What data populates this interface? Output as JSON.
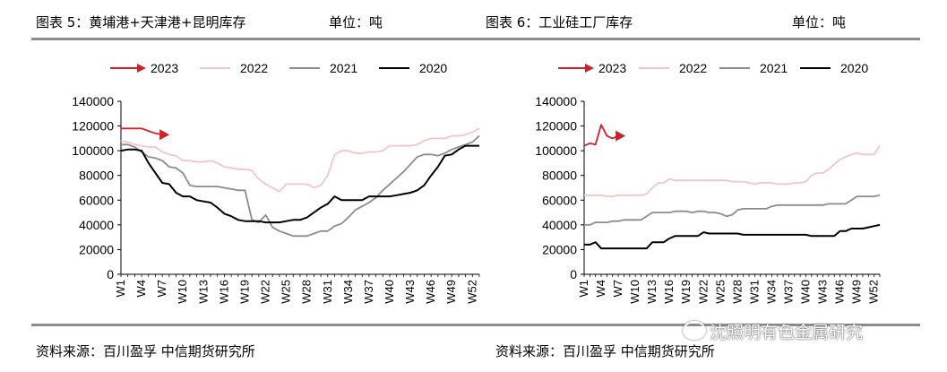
{
  "header": {
    "left_title": "图表 5：黄埔港+天津港+昆明库存",
    "left_unit": "单位：吨",
    "right_title": "图表 6：工业硅工厂库存",
    "right_unit": "单位：吨"
  },
  "source": {
    "left": "资料来源：百川盈孚 中信期货研究所",
    "right": "资料来源：百川盈孚 中信期货研究所"
  },
  "watermark": "沈照明有色金属研究",
  "colors": {
    "2023": "#d0202a",
    "2022": "#f2c6c6",
    "2021": "#8c8c8c",
    "2020": "#000000"
  },
  "chart_data": [
    {
      "type": "line",
      "title": "",
      "legend": [
        "2023",
        "2022",
        "2021",
        "2020"
      ],
      "legend_position": "top",
      "x_ticks": [
        "W1",
        "W4",
        "W7",
        "W10",
        "W13",
        "W16",
        "W19",
        "W22",
        "W25",
        "W28",
        "W31",
        "W34",
        "W37",
        "W40",
        "W43",
        "W46",
        "W49",
        "W52"
      ],
      "ylim": [
        0,
        140000
      ],
      "y_ticks": [
        0,
        20000,
        40000,
        60000,
        80000,
        100000,
        120000,
        140000
      ],
      "series": [
        {
          "name": "2023",
          "x": [
            1,
            2,
            3,
            4,
            5,
            6,
            7
          ],
          "values": [
            118000,
            118000,
            118000,
            118000,
            116000,
            114000,
            113000
          ]
        },
        {
          "name": "2022",
          "x": [
            1,
            2,
            3,
            4,
            5,
            6,
            7,
            8,
            9,
            10,
            11,
            12,
            13,
            14,
            15,
            16,
            17,
            18,
            19,
            20,
            21,
            22,
            23,
            24,
            25,
            26,
            27,
            28,
            29,
            30,
            31,
            32,
            33,
            34,
            35,
            36,
            37,
            38,
            39,
            40,
            41,
            42,
            43,
            44,
            45,
            46,
            47,
            48,
            49,
            50,
            51,
            52,
            53
          ],
          "values": [
            108000,
            107000,
            105000,
            104000,
            103000,
            103000,
            99000,
            97000,
            96000,
            92000,
            92000,
            91000,
            91000,
            92000,
            90000,
            87000,
            86000,
            85000,
            85000,
            84000,
            77000,
            73000,
            70000,
            67000,
            73000,
            73000,
            73000,
            73000,
            70000,
            72000,
            80000,
            97000,
            100000,
            100000,
            98000,
            98000,
            99000,
            99000,
            100000,
            104000,
            104000,
            104000,
            104000,
            105000,
            108000,
            110000,
            110000,
            110000,
            112000,
            112000,
            113000,
            115000,
            118000
          ]
        },
        {
          "name": "2021",
          "x": [
            1,
            2,
            3,
            4,
            5,
            6,
            7,
            8,
            9,
            10,
            11,
            12,
            13,
            14,
            15,
            16,
            17,
            18,
            19,
            20,
            21,
            22,
            23,
            24,
            25,
            26,
            27,
            28,
            29,
            30,
            31,
            32,
            33,
            34,
            35,
            36,
            37,
            38,
            39,
            40,
            41,
            42,
            43,
            44,
            45,
            46,
            47,
            48,
            49,
            50,
            51,
            52,
            53
          ],
          "values": [
            105000,
            105000,
            103000,
            99000,
            95000,
            94000,
            92000,
            87000,
            86000,
            82000,
            72000,
            71000,
            71000,
            71000,
            71000,
            70000,
            69000,
            68000,
            68000,
            44000,
            42000,
            48000,
            38000,
            35000,
            33000,
            31000,
            31000,
            31000,
            33000,
            35000,
            35000,
            39000,
            41000,
            46000,
            52000,
            55000,
            58000,
            62000,
            68000,
            73000,
            78000,
            83000,
            89000,
            95000,
            97000,
            97000,
            96000,
            98000,
            101000,
            103000,
            105000,
            107000,
            112000
          ]
        },
        {
          "name": "2020",
          "x": [
            1,
            2,
            3,
            4,
            5,
            6,
            7,
            8,
            9,
            10,
            11,
            12,
            13,
            14,
            15,
            16,
            17,
            18,
            19,
            20,
            21,
            22,
            23,
            24,
            25,
            26,
            27,
            28,
            29,
            30,
            31,
            32,
            33,
            34,
            35,
            36,
            37,
            38,
            39,
            40,
            41,
            42,
            43,
            44,
            45,
            46,
            47,
            48,
            49,
            50,
            51,
            52,
            53
          ],
          "values": [
            100000,
            101000,
            101000,
            100000,
            90000,
            82000,
            74000,
            73000,
            66000,
            63000,
            63000,
            60000,
            59000,
            58000,
            54000,
            49000,
            47000,
            44000,
            43000,
            43000,
            43000,
            42000,
            42000,
            42000,
            43000,
            44000,
            44000,
            46000,
            50000,
            54000,
            57000,
            63000,
            60000,
            60000,
            60000,
            60000,
            63000,
            63000,
            63000,
            63000,
            64000,
            65000,
            66000,
            68000,
            72000,
            80000,
            87000,
            96000,
            97000,
            101000,
            104000,
            104000,
            104000
          ]
        }
      ]
    },
    {
      "type": "line",
      "title": "",
      "legend": [
        "2023",
        "2022",
        "2021",
        "2020"
      ],
      "legend_position": "top",
      "x_ticks": [
        "W1",
        "W4",
        "W7",
        "W10",
        "W13",
        "W16",
        "W19",
        "W22",
        "W25",
        "W28",
        "W31",
        "W34",
        "W37",
        "W40",
        "W43",
        "W46",
        "W49",
        "W52"
      ],
      "ylim": [
        0,
        140000
      ],
      "y_ticks": [
        0,
        20000,
        40000,
        60000,
        80000,
        100000,
        120000,
        140000
      ],
      "series": [
        {
          "name": "2023",
          "x": [
            1,
            2,
            3,
            4,
            5,
            6,
            7
          ],
          "values": [
            104000,
            106000,
            105000,
            121000,
            112000,
            110000,
            112000
          ]
        },
        {
          "name": "2022",
          "x": [
            1,
            2,
            3,
            4,
            5,
            6,
            7,
            8,
            9,
            10,
            11,
            12,
            13,
            14,
            15,
            16,
            17,
            18,
            19,
            20,
            21,
            22,
            23,
            24,
            25,
            26,
            27,
            28,
            29,
            30,
            31,
            32,
            33,
            34,
            35,
            36,
            37,
            38,
            39,
            40,
            41,
            42,
            43,
            44,
            45,
            46,
            47,
            48,
            49,
            50,
            51,
            52,
            53
          ],
          "values": [
            64000,
            64000,
            64000,
            64000,
            63000,
            63000,
            64000,
            64000,
            64000,
            64000,
            64000,
            65000,
            70000,
            74000,
            74000,
            77000,
            76000,
            76000,
            76000,
            76000,
            76000,
            76000,
            76000,
            76000,
            76000,
            76000,
            75000,
            75000,
            75000,
            74000,
            73000,
            74000,
            74000,
            74000,
            73000,
            73000,
            73000,
            74000,
            74000,
            75000,
            80000,
            82000,
            82000,
            85000,
            89000,
            93000,
            95000,
            97000,
            98000,
            97000,
            97000,
            97000,
            104000
          ]
        },
        {
          "name": "2021",
          "x": [
            1,
            2,
            3,
            4,
            5,
            6,
            7,
            8,
            9,
            10,
            11,
            12,
            13,
            14,
            15,
            16,
            17,
            18,
            19,
            20,
            21,
            22,
            23,
            24,
            25,
            26,
            27,
            28,
            29,
            30,
            31,
            32,
            33,
            34,
            35,
            36,
            37,
            38,
            39,
            40,
            41,
            42,
            43,
            44,
            45,
            46,
            47,
            48,
            49,
            50,
            51,
            52,
            53
          ],
          "values": [
            40000,
            40000,
            42000,
            42000,
            42000,
            43000,
            43000,
            44000,
            44000,
            44000,
            44000,
            47000,
            50000,
            50000,
            50000,
            50000,
            51000,
            51000,
            51000,
            50000,
            51000,
            51000,
            50000,
            50000,
            49000,
            47000,
            48000,
            52000,
            53000,
            53000,
            53000,
            53000,
            53000,
            55000,
            56000,
            56000,
            56000,
            56000,
            56000,
            56000,
            56000,
            56000,
            56000,
            57000,
            57000,
            57000,
            57000,
            60000,
            63000,
            63000,
            63000,
            63000,
            64000
          ]
        },
        {
          "name": "2020",
          "x": [
            1,
            2,
            3,
            4,
            5,
            6,
            7,
            8,
            9,
            10,
            11,
            12,
            13,
            14,
            15,
            16,
            17,
            18,
            19,
            20,
            21,
            22,
            23,
            24,
            25,
            26,
            27,
            28,
            29,
            30,
            31,
            32,
            33,
            34,
            35,
            36,
            37,
            38,
            39,
            40,
            41,
            42,
            43,
            44,
            45,
            46,
            47,
            48,
            49,
            50,
            51,
            52,
            53
          ],
          "values": [
            24000,
            24000,
            26000,
            21000,
            21000,
            21000,
            21000,
            21000,
            21000,
            21000,
            21000,
            21000,
            26000,
            26000,
            26000,
            29000,
            31000,
            31000,
            31000,
            31000,
            31000,
            34000,
            33000,
            33000,
            33000,
            33000,
            33000,
            33000,
            32000,
            32000,
            32000,
            32000,
            32000,
            32000,
            32000,
            32000,
            32000,
            32000,
            32000,
            32000,
            31000,
            31000,
            31000,
            31000,
            31000,
            35000,
            35000,
            37000,
            37000,
            37000,
            38000,
            39000,
            40000
          ]
        }
      ]
    }
  ]
}
